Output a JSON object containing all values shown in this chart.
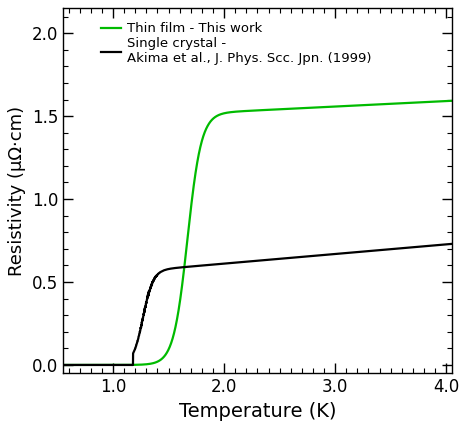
{
  "title": "",
  "xlabel": "Temperature (K)",
  "ylabel": "Resistivity (μΩ·cm)",
  "xlim": [
    0.55,
    4.05
  ],
  "ylim": [
    -0.05,
    2.15
  ],
  "xticks": [
    1.0,
    2.0,
    3.0,
    4.0
  ],
  "xtick_labels": [
    "1.0",
    "2.0",
    "3.0",
    "4.0"
  ],
  "yticks": [
    0.0,
    0.5,
    1.0,
    1.5,
    2.0
  ],
  "ytick_labels": [
    "0.0",
    "0.5",
    "1.0",
    "1.5",
    "2.0"
  ],
  "green_label": "Thin film - This work",
  "black_label": "Single crystal -\nAkima et al., J. Phys. Scc. Jpn. (1999)",
  "green_color": "#00bb00",
  "black_color": "#000000",
  "text_color": "#000000",
  "line_width": 1.6,
  "background_color": "#ffffff",
  "figsize": [
    4.68,
    4.29
  ],
  "dpi": 100,
  "green_x0": 1.67,
  "green_k": 16,
  "green_plateau": 1.52,
  "green_slope": 0.033,
  "green_slope_start": 1.85,
  "black_x0": 1.27,
  "black_k": 22,
  "black_plateau": 0.575,
  "black_slope": 0.058,
  "black_slope_start": 1.38,
  "black_zero_end": 1.18
}
